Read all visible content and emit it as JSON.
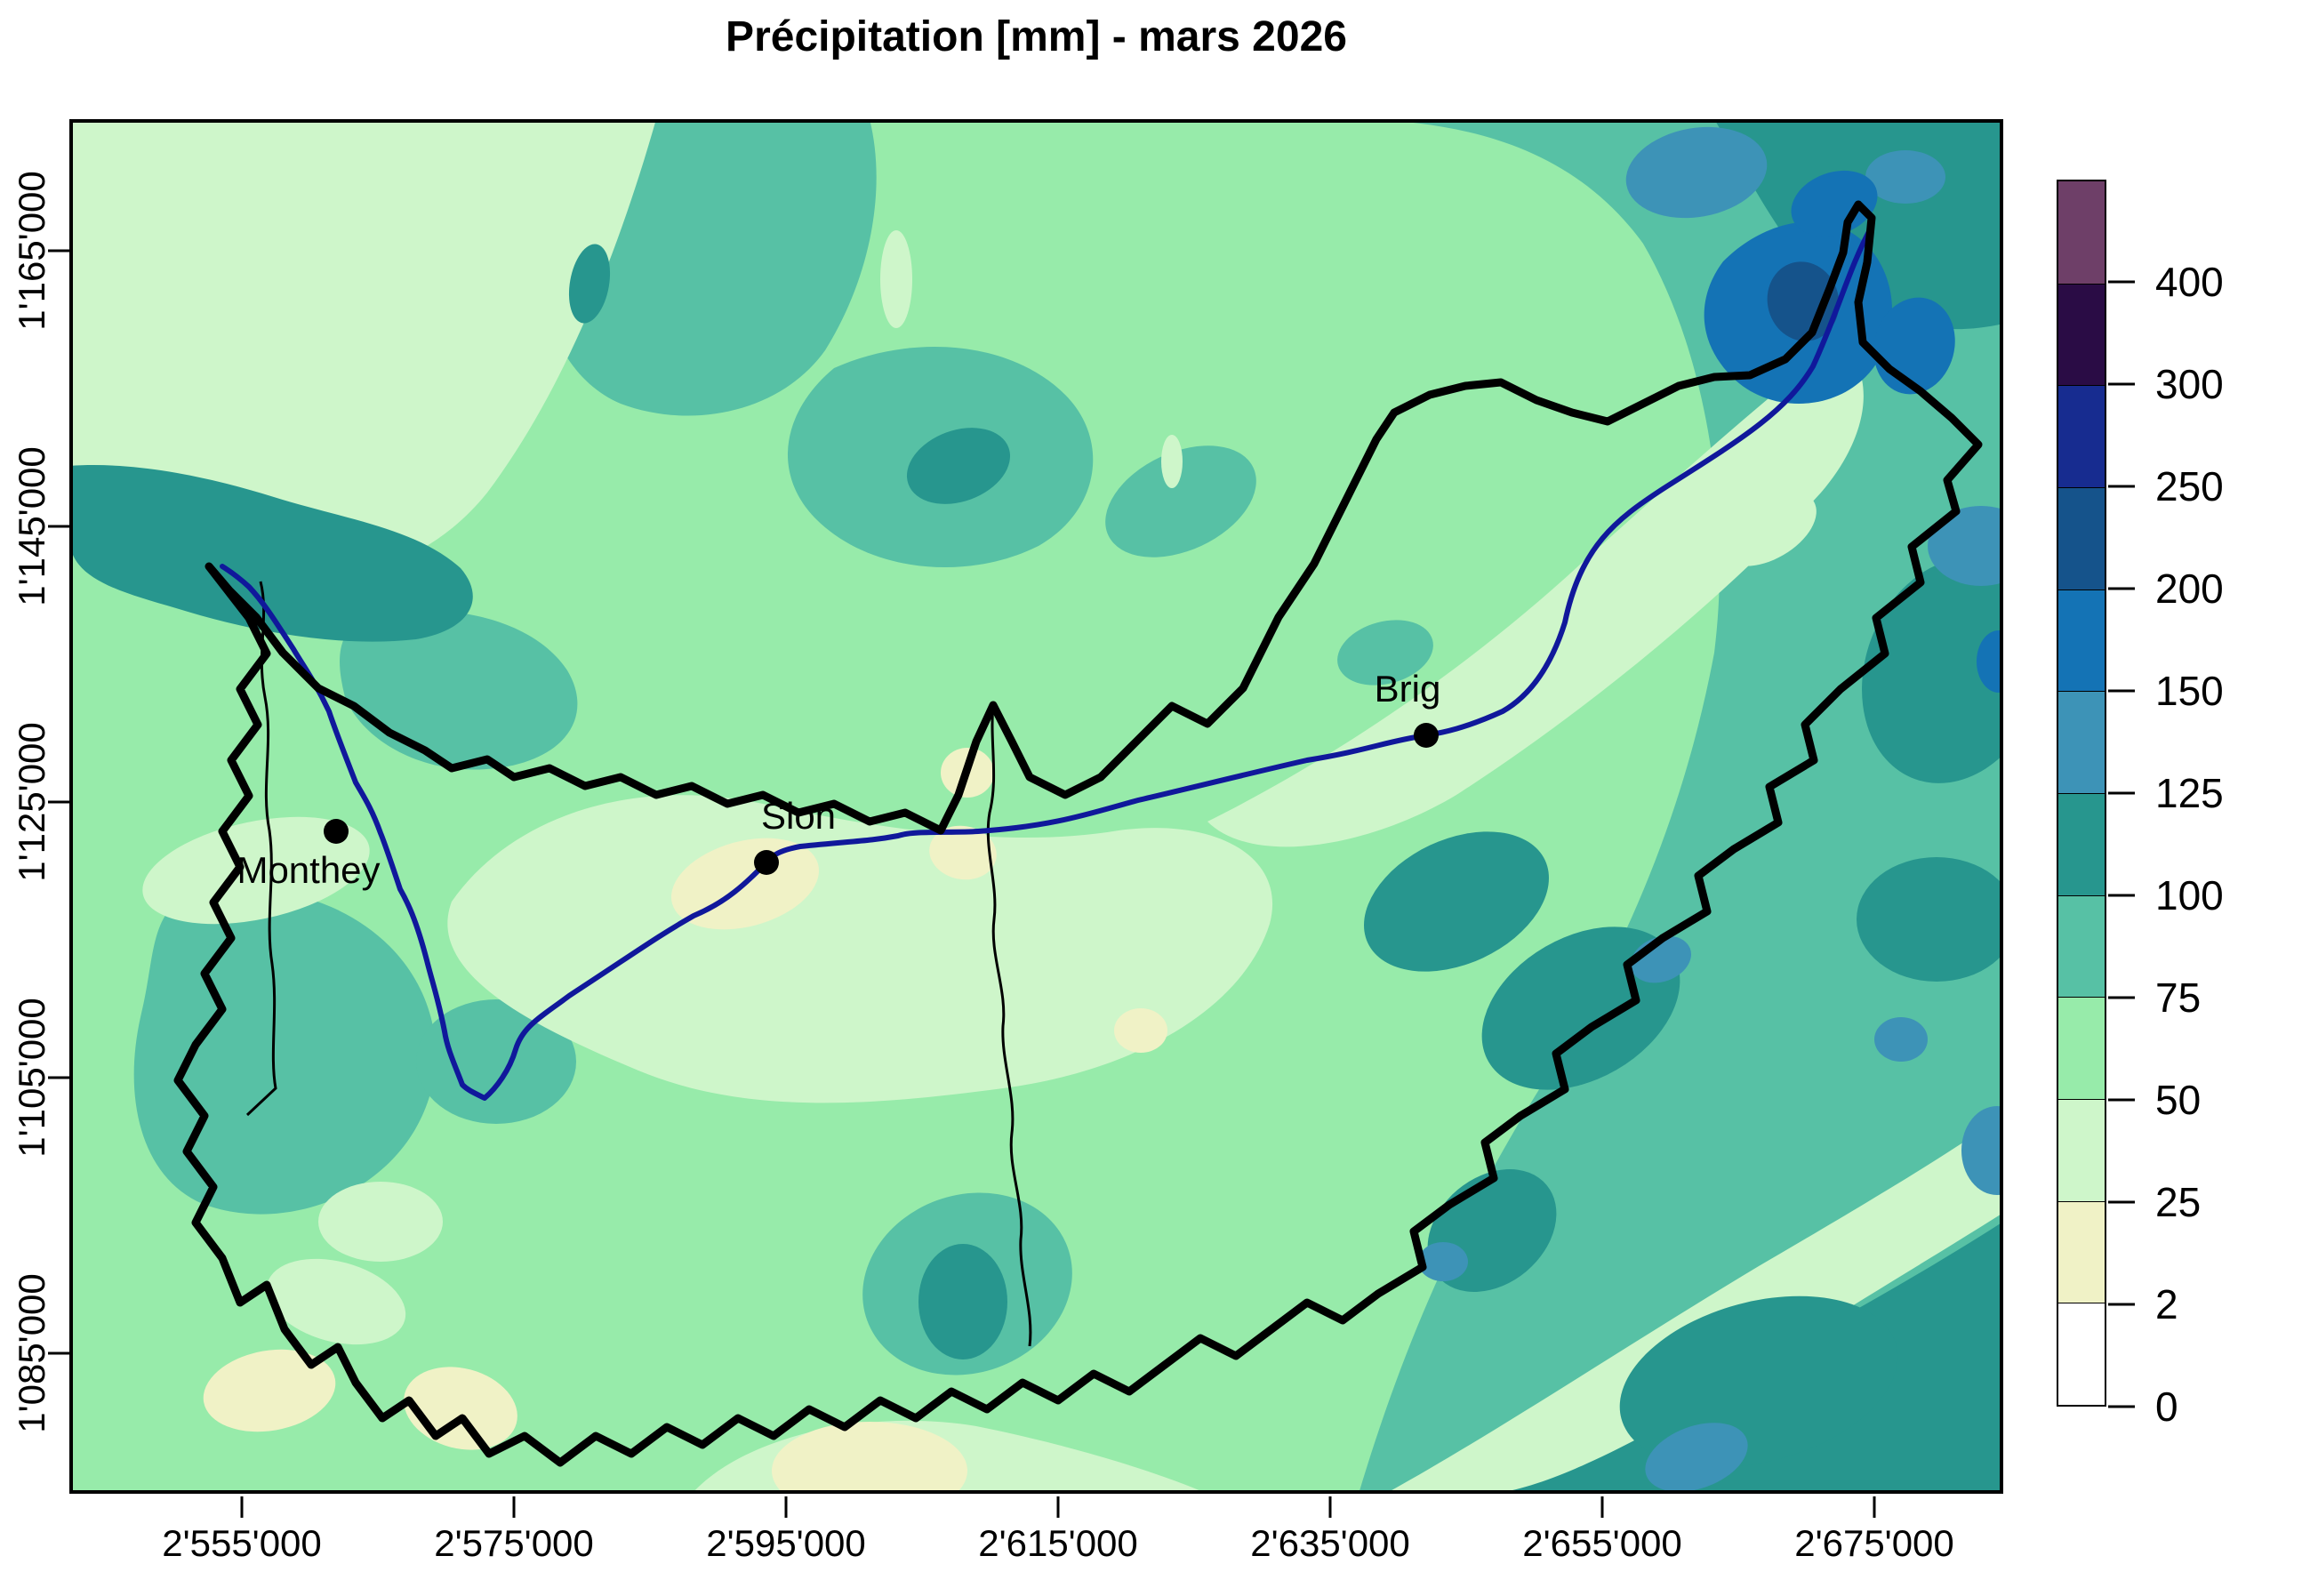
{
  "title": "Précipitation [mm] - mars 2026",
  "axes": {
    "x_tick_labels": [
      "2'555'000",
      "2'575'000",
      "2'595'000",
      "2'615'000",
      "2'635'000",
      "2'655'000",
      "2'675'000"
    ],
    "y_tick_labels": [
      "1'165'000",
      "1'145'000",
      "1'125'000",
      "1'105'000",
      "1'085'000"
    ]
  },
  "legend": {
    "tick_labels": [
      "400",
      "300",
      "250",
      "200",
      "150",
      "125",
      "100",
      "75",
      "50",
      "25",
      "2",
      "0"
    ],
    "bins": [
      {
        "range": "> 400",
        "color": "#6E3F68"
      },
      {
        "range": "300 - 400",
        "color": "#2A0C45"
      },
      {
        "range": "250 - 300",
        "color": "#172C90"
      },
      {
        "range": "200 - 250",
        "color": "#15538B"
      },
      {
        "range": "150 - 200",
        "color": "#1473B5"
      },
      {
        "range": "125 - 150",
        "color": "#3D93B7"
      },
      {
        "range": "100 - 125",
        "color": "#27968E"
      },
      {
        "range": "75 - 100",
        "color": "#57C1A5"
      },
      {
        "range": "50 - 75",
        "color": "#97EBAA"
      },
      {
        "range": "25 - 50",
        "color": "#CEF6CA"
      },
      {
        "range": "2 - 25",
        "color": "#F0F2C6"
      },
      {
        "range": "0 - 2",
        "color": "#FFFFFF"
      }
    ]
  },
  "map": {
    "cities": [
      {
        "name": "Monthey"
      },
      {
        "name": "Sion"
      },
      {
        "name": "Brig"
      }
    ]
  },
  "colors": {
    "river": "#10189B",
    "boundary": "#000000",
    "district_line": "#000000",
    "frame": "#000000",
    "city_dot": "#000000"
  },
  "chart_data": {
    "type": "heatmap",
    "title": "Précipitation [mm] - mars 2026",
    "units": "mm",
    "period": "mars 2026",
    "legend_levels": [
      0,
      2,
      25,
      50,
      75,
      100,
      125,
      150,
      200,
      250,
      300,
      400
    ],
    "legend_colors_low_to_high": [
      "#FFFFFF",
      "#F0F2C6",
      "#CEF6CA",
      "#97EBAA",
      "#57C1A5",
      "#27968E",
      "#3D93B7",
      "#1473B5",
      "#15538B",
      "#172C90",
      "#2A0C45",
      "#6E3F68"
    ],
    "x_tick_labels": [
      "2'555'000",
      "2'575'000",
      "2'595'000",
      "2'615'000",
      "2'635'000",
      "2'655'000",
      "2'675'000"
    ],
    "y_tick_labels": [
      "1'165'000",
      "1'145'000",
      "1'125'000",
      "1'105'000",
      "1'085'000"
    ],
    "cities": [
      "Monthey",
      "Sion",
      "Brig"
    ],
    "notes": "Filled contour precipitation map of the Valais region; Rhône river drawn in dark blue; thick black canton boundary with thin district boundaries; highest values (blue, 150-250 mm) in the north-east corner, lowest (0-25 mm, yellow) in the central Rhône valley near Sion."
  }
}
